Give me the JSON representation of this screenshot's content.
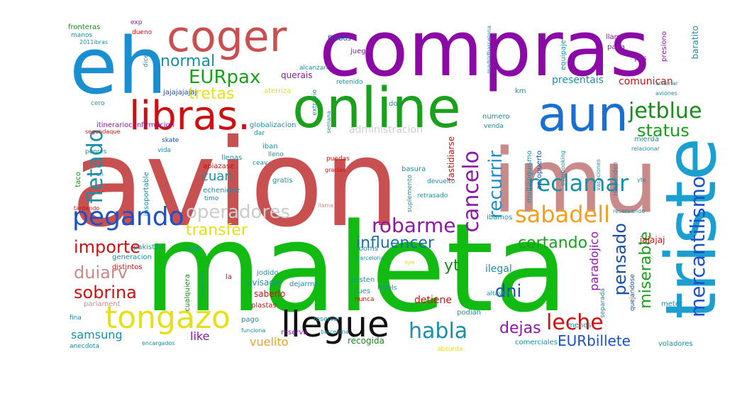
{
  "words": [
    {
      "text": "compras",
      "color": "#8b0aa5"
    },
    {
      "text": "eh",
      "color": "#1a8fd0"
    },
    {
      "text": "coger",
      "color": "#c85050"
    },
    {
      "text": "online",
      "color": "#1aa01a"
    },
    {
      "text": "libras.",
      "color": "#cc1111"
    },
    {
      "text": "aun",
      "color": "#1a6fd0"
    },
    {
      "text": "avion",
      "color": "#c85050"
    },
    {
      "text": "imu",
      "color": "#c98a8a"
    },
    {
      "text": "triste",
      "color": "#1a9fd0"
    },
    {
      "text": "maleta",
      "color": "#11bb11"
    },
    {
      "text": "tongazo",
      "color": "#e6e01a"
    },
    {
      "text": "llegue",
      "color": "#111111"
    },
    {
      "text": "pegando",
      "color": "#1a50c8"
    },
    {
      "text": "operadores",
      "color": "#cccccc"
    },
    {
      "text": "robarme",
      "color": "#8b1aa5"
    },
    {
      "text": "sabadell",
      "color": "#f0a020"
    },
    {
      "text": "reclamar",
      "color": "#1a8fa5"
    },
    {
      "text": "jetblue",
      "color": "#1a8a1a"
    },
    {
      "text": "status",
      "color": "#1aa01a"
    },
    {
      "text": "EURpax",
      "color": "#1a9f1a"
    },
    {
      "text": "tretas",
      "color": "#e6e01a"
    },
    {
      "text": "normal",
      "color": "#1a8fa5"
    },
    {
      "text": "fletado",
      "color": "#1a8fa5"
    },
    {
      "text": "cancelo",
      "color": "#8b1aa5"
    },
    {
      "text": "recurrir",
      "color": "#1a8fd0"
    },
    {
      "text": "transfer",
      "color": "#e6e01a"
    },
    {
      "text": "influencer",
      "color": "#1a6fa5"
    },
    {
      "text": "cortando",
      "color": "#1aa01a"
    },
    {
      "text": "importe",
      "color": "#cc1111"
    },
    {
      "text": "duiarv",
      "color": "#c98a8a"
    },
    {
      "text": "sobrina",
      "color": "#cc1111"
    },
    {
      "text": "habla",
      "color": "#1a8fa5"
    },
    {
      "text": "leche",
      "color": "#cc1111"
    },
    {
      "text": "dejas",
      "color": "#8b1aa5"
    },
    {
      "text": "EURbillete",
      "color": "#1a50c8"
    },
    {
      "text": "dni",
      "color": "#1a50a5"
    },
    {
      "text": "yt",
      "color": "#1a8a1a"
    },
    {
      "text": "pensado",
      "color": "#1a50a5"
    },
    {
      "text": "miserable",
      "color": "#1aa01a"
    },
    {
      "text": "mercantilismo",
      "color": "#1a50c8"
    },
    {
      "text": "paradojico",
      "color": "#8b1aa5"
    },
    {
      "text": "cuan",
      "color": "#1a8fa5"
    },
    {
      "text": "samsung",
      "color": "#1a8fa5"
    },
    {
      "text": "vuelito",
      "color": "#f0a020"
    },
    {
      "text": "like",
      "color": "#8b1aa5"
    },
    {
      "text": "recogida",
      "color": "#1a8a1a"
    },
    {
      "text": "comerciales",
      "color": "#1a8fa5"
    },
    {
      "text": "voladores",
      "color": "#1a8fa5"
    },
    {
      "text": "absurda",
      "color": "#e6e01a"
    },
    {
      "text": "administracion",
      "color": "#cccccc"
    },
    {
      "text": "comunican",
      "color": "#cc1111"
    },
    {
      "text": "presentais",
      "color": "#1a8fa5"
    },
    {
      "text": "querais",
      "color": "#8b1aa5"
    },
    {
      "text": "jajajajajaj",
      "color": "#1a50a5"
    },
    {
      "text": "aterriza",
      "color": "#e6e01a"
    },
    {
      "text": "baratito",
      "color": "#1a8fa5"
    },
    {
      "text": "llama",
      "color": "#8b1aa5"
    },
    {
      "text": "paga",
      "color": "#8b1aa5"
    },
    {
      "text": "pos",
      "color": "#8b1aa5"
    },
    {
      "text": "flixbus",
      "color": "#1a50a5"
    },
    {
      "text": "juega",
      "color": "#8b1aa5"
    },
    {
      "text": "exp",
      "color": "#8b1aa5"
    },
    {
      "text": "dueno",
      "color": "#cc1111"
    },
    {
      "text": "fronteras",
      "color": "#1a8a1a"
    },
    {
      "text": "manos",
      "color": "#1a8fa5"
    },
    {
      "text": "ilegal",
      "color": "#1a8fa5"
    },
    {
      "text": "detiene",
      "color": "#cc1111"
    },
    {
      "text": "podian",
      "color": "#1a8fa5"
    },
    {
      "text": "pago",
      "color": "#1a8fa5"
    },
    {
      "text": "menos",
      "color": "#1a8fa5"
    },
    {
      "text": "meter",
      "color": "#1a8fa5"
    },
    {
      "text": "jajajaj",
      "color": "#cc1111"
    },
    {
      "text": "avisado",
      "color": "#1a8fa5"
    },
    {
      "text": "dejarme",
      "color": "#1a8fa5"
    },
    {
      "text": "saberlo",
      "color": "#cc1111"
    },
    {
      "text": "plastas",
      "color": "#cc1111"
    },
    {
      "text": "jodido",
      "color": "#1a8fa5"
    },
    {
      "text": "gusten",
      "color": "#1a8fa5"
    },
    {
      "text": "pues",
      "color": "#1a8fa5"
    },
    {
      "text": "reserva",
      "color": "#8b1aa5"
    },
    {
      "text": "usan",
      "color": "#1a8fa5"
    },
    {
      "text": "pakistan",
      "color": "#1a8fa5"
    },
    {
      "text": "generacion",
      "color": "#1a8fa5"
    },
    {
      "text": "distintos",
      "color": "#cc1111"
    },
    {
      "text": "parlament",
      "color": "#c98a8a"
    },
    {
      "text": "fina",
      "color": "#1a8fa5"
    },
    {
      "text": "anecdota",
      "color": "#1a8fa5"
    },
    {
      "text": "llenas",
      "color": "#1a8fa5"
    },
    {
      "text": "vida",
      "color": "#1a8fa5"
    },
    {
      "text": "peores",
      "color": "#1a8fa5"
    },
    {
      "text": "itinerarioconfirmacion",
      "color": "#8b1aa5"
    },
    {
      "text": "globalizacion",
      "color": "#1a8fa5"
    },
    {
      "text": "cero",
      "color": "#1a8fa5"
    },
    {
      "text": "skate",
      "color": "#1a50a5"
    },
    {
      "text": "iban",
      "color": "#1a8fa5"
    },
    {
      "text": "ceav",
      "color": "#1a8fa5"
    },
    {
      "text": "echenique",
      "color": "#1a8fa5"
    },
    {
      "text": "gratis",
      "color": "#1a8fa5"
    },
    {
      "text": "timo",
      "color": "#1a8fa5"
    },
    {
      "text": "basura",
      "color": "#1a8fa5"
    },
    {
      "text": "retrasado",
      "color": "#1a8fa5"
    },
    {
      "text": "devuelto",
      "color": "#1a8fa5"
    },
    {
      "text": "fastidiarse",
      "color": "#cc1111"
    },
    {
      "text": "numero",
      "color": "#1a8fa5"
    },
    {
      "text": "venda",
      "color": "#1a8fa5"
    },
    {
      "text": "ibamos",
      "color": "#1a8fa5"
    },
    {
      "text": "km",
      "color": "#1a8fa5"
    },
    {
      "text": "retenido",
      "color": "#1a8fa5"
    },
    {
      "text": "alcanzan",
      "color": "#1a8fa5"
    },
    {
      "text": "extravio",
      "color": "#1a8fa5"
    },
    {
      "text": "dos",
      "color": "#1a8fa5"
    },
    {
      "text": "equipaje",
      "color": "#1a8fa5"
    },
    {
      "text": "presiono",
      "color": "#8b1aa5"
    },
    {
      "text": "dice",
      "color": "#1a8fa5"
    },
    {
      "text": "apiazase",
      "color": "#cc1111"
    },
    {
      "text": "insoportable",
      "color": "#1a8fa5"
    },
    {
      "text": "taco",
      "color": "#1a8a1a"
    },
    {
      "text": "asientos",
      "color": "#1a8fa5"
    },
    {
      "text": "la",
      "color": "#cc1111"
    },
    {
      "text": "cualquiera",
      "color": "#1a8a1a"
    },
    {
      "text": "quejandose",
      "color": "#1a50a5"
    },
    {
      "text": "separada",
      "color": "#1a8fa5"
    },
    {
      "text": "altavoz",
      "color": "#1a8fa5"
    },
    {
      "text": "aeropuerto",
      "color": "#1a50a5"
    },
    {
      "text": "multilinguismo",
      "color": "#1a8fa5"
    },
    {
      "text": "suplemento",
      "color": "#1a8fa5"
    },
    {
      "text": "dar",
      "color": "#1a8fa5"
    },
    {
      "text": "mierda",
      "color": "#1a8fa5"
    },
    {
      "text": "relacionar",
      "color": "#1a8fa5"
    },
    {
      "text": "responden",
      "color": "#1a8fa5"
    },
    {
      "text": "yte",
      "color": "#1a8fa5"
    },
    {
      "text": "reservando",
      "color": "#1a8fa5"
    },
    {
      "text": "vacaciones",
      "color": "#1a8fa5"
    },
    {
      "text": "overbooking",
      "color": "#1a8fa5"
    },
    {
      "text": "puedas",
      "color": "#cc1111"
    },
    {
      "text": "gracias",
      "color": "#cc1111"
    },
    {
      "text": "lleno",
      "color": "#1a8fa5"
    },
    {
      "text": "an",
      "color": "#1a8fa5"
    },
    {
      "text": "tardando",
      "color": "#cc1111"
    },
    {
      "text": "llama",
      "color": "#c98a8a"
    },
    {
      "text": "rooms",
      "color": "#1a8fa5"
    },
    {
      "text": "barcelona",
      "color": "#1a8fa5"
    },
    {
      "text": "hotels",
      "color": "#1a8fa5"
    },
    {
      "text": "oye",
      "color": "#e6e01a"
    },
    {
      "text": "reserva",
      "color": "#1a8fa5"
    },
    {
      "text": "barcelona",
      "color": "#1a8fa5"
    },
    {
      "text": "funciona",
      "color": "#1a8fa5"
    },
    {
      "text": "encargados",
      "color": "#1a8fa5"
    },
    {
      "text": "nunca",
      "color": "#cc1111"
    },
    {
      "text": "segundaque",
      "color": "#cc1111"
    },
    {
      "text": "arruinar",
      "color": "#1a8fa5"
    },
    {
      "text": "aviones",
      "color": "#1a8fa5"
    },
    {
      "text": "madridbarcelona",
      "color": "#1a8fa5"
    },
    {
      "text": "semana",
      "color": "#1a8fa5"
    },
    {
      "text": "2011ibras",
      "color": "#1a8fa5"
    }
  ]
}
